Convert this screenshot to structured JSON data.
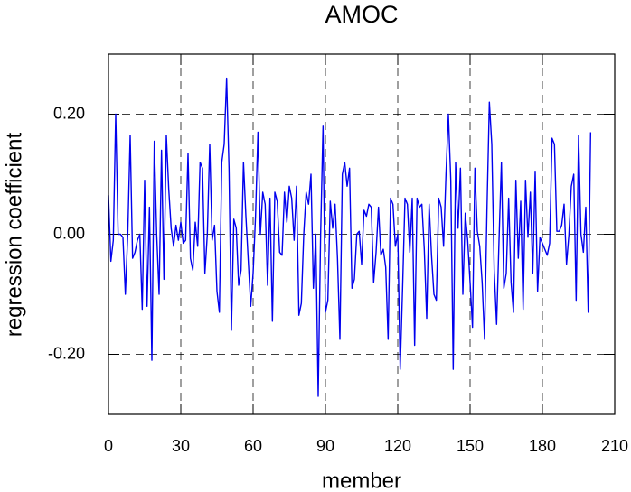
{
  "chart_data": {
    "type": "line",
    "title": "AMOC",
    "xlabel": "member",
    "ylabel": "regression coefficient",
    "x": [
      0,
      1,
      2,
      3,
      4,
      5,
      6,
      7,
      8,
      9,
      10,
      11,
      12,
      13,
      14,
      15,
      16,
      17,
      18,
      19,
      20,
      21,
      22,
      23,
      24,
      25,
      26,
      27,
      28,
      29,
      30,
      31,
      32,
      33,
      34,
      35,
      36,
      37,
      38,
      39,
      40,
      41,
      42,
      43,
      44,
      45,
      46,
      47,
      48,
      49,
      50,
      51,
      52,
      53,
      54,
      55,
      56,
      57,
      58,
      59,
      60,
      61,
      62,
      63,
      64,
      65,
      66,
      67,
      68,
      69,
      70,
      71,
      72,
      73,
      74,
      75,
      76,
      77,
      78,
      79,
      80,
      81,
      82,
      83,
      84,
      85,
      86,
      87,
      88,
      89,
      90,
      91,
      92,
      93,
      94,
      95,
      96,
      97,
      98,
      99,
      100,
      101,
      102,
      103,
      104,
      105,
      106,
      107,
      108,
      109,
      110,
      111,
      112,
      113,
      114,
      115,
      116,
      117,
      118,
      119,
      120,
      121,
      122,
      123,
      124,
      125,
      126,
      127,
      128,
      129,
      130,
      131,
      132,
      133,
      134,
      135,
      136,
      137,
      138,
      139,
      140,
      141,
      142,
      143,
      144,
      145,
      146,
      147,
      148,
      149,
      150,
      151,
      152,
      153,
      154,
      155,
      156,
      157,
      158,
      159,
      160,
      161,
      162,
      163,
      164,
      165,
      166,
      167,
      168,
      169,
      170,
      171,
      172,
      173,
      174,
      175,
      176,
      177,
      178,
      179,
      180,
      181,
      182,
      183,
      184,
      185,
      186,
      187,
      188,
      189,
      190,
      191,
      192,
      193,
      194,
      195,
      196,
      197,
      198,
      199,
      200
    ],
    "series": [
      {
        "name": "AMOC",
        "color": "#0000ee",
        "values": [
          0.065,
          -0.045,
          -0.01,
          0.2,
          0.0,
          0.0,
          -0.005,
          -0.1,
          0.0,
          0.165,
          -0.04,
          -0.03,
          -0.01,
          0.0,
          -0.125,
          0.09,
          -0.12,
          0.045,
          -0.21,
          0.155,
          0.0,
          -0.1,
          0.14,
          -0.075,
          0.165,
          0.075,
          0.01,
          -0.02,
          0.015,
          -0.01,
          0.02,
          -0.015,
          -0.01,
          0.135,
          -0.04,
          -0.06,
          0.02,
          -0.02,
          0.12,
          0.11,
          -0.065,
          0.0,
          0.15,
          -0.01,
          0.015,
          -0.095,
          -0.13,
          0.12,
          0.15,
          0.26,
          0.11,
          -0.16,
          0.025,
          0.01,
          -0.085,
          -0.06,
          0.12,
          0.03,
          -0.045,
          -0.12,
          -0.065,
          0.03,
          0.17,
          0.0,
          0.07,
          0.05,
          -0.085,
          0.06,
          -0.145,
          0.07,
          0.055,
          -0.03,
          -0.035,
          0.07,
          0.02,
          0.08,
          0.06,
          -0.01,
          0.08,
          -0.135,
          -0.115,
          0.0,
          0.07,
          0.05,
          0.1,
          -0.09,
          0.0,
          -0.27,
          0.0,
          0.18,
          -0.13,
          -0.11,
          0.055,
          0.01,
          0.05,
          -0.04,
          -0.175,
          0.1,
          0.12,
          0.08,
          0.11,
          -0.09,
          -0.075,
          0.0,
          0.005,
          -0.05,
          0.04,
          0.03,
          0.05,
          0.045,
          -0.08,
          -0.03,
          0.045,
          -0.035,
          -0.025,
          -0.055,
          -0.175,
          0.06,
          0.05,
          -0.02,
          0.0,
          -0.225,
          -0.09,
          0.06,
          0.05,
          -0.03,
          0.06,
          -0.185,
          0.06,
          0.045,
          0.05,
          -0.025,
          -0.14,
          0.05,
          -0.035,
          -0.1,
          -0.11,
          0.06,
          0.045,
          -0.02,
          0.1,
          0.2,
          0.09,
          -0.225,
          0.12,
          0.01,
          0.11,
          -0.1,
          0.035,
          -0.01,
          -0.08,
          -0.155,
          0.11,
          0.005,
          -0.02,
          -0.08,
          -0.175,
          0.04,
          0.22,
          0.15,
          -0.06,
          -0.15,
          -0.01,
          0.12,
          -0.09,
          -0.065,
          0.06,
          -0.08,
          -0.13,
          0.09,
          -0.04,
          0.055,
          -0.125,
          0.09,
          -0.005,
          0.07,
          -0.065,
          0.105,
          -0.095,
          -0.005,
          -0.015,
          -0.025,
          -0.035,
          -0.015,
          0.16,
          0.15,
          0.005,
          0.005,
          0.015,
          0.05,
          -0.05,
          0.0,
          0.08,
          0.1,
          -0.11,
          0.165,
          0.0,
          -0.03,
          0.045,
          -0.13,
          0.17
        ]
      }
    ],
    "xlim": [
      0,
      210
    ],
    "xticks": [
      0,
      30,
      60,
      90,
      120,
      150,
      180,
      210
    ],
    "ylim": [
      -0.3,
      0.3
    ],
    "yticks": [
      {
        "value": -0.2,
        "label": "-0.20"
      },
      {
        "value": 0,
        "label": "0.00"
      },
      {
        "value": 0.2,
        "label": "0.20"
      }
    ],
    "grid": true
  }
}
